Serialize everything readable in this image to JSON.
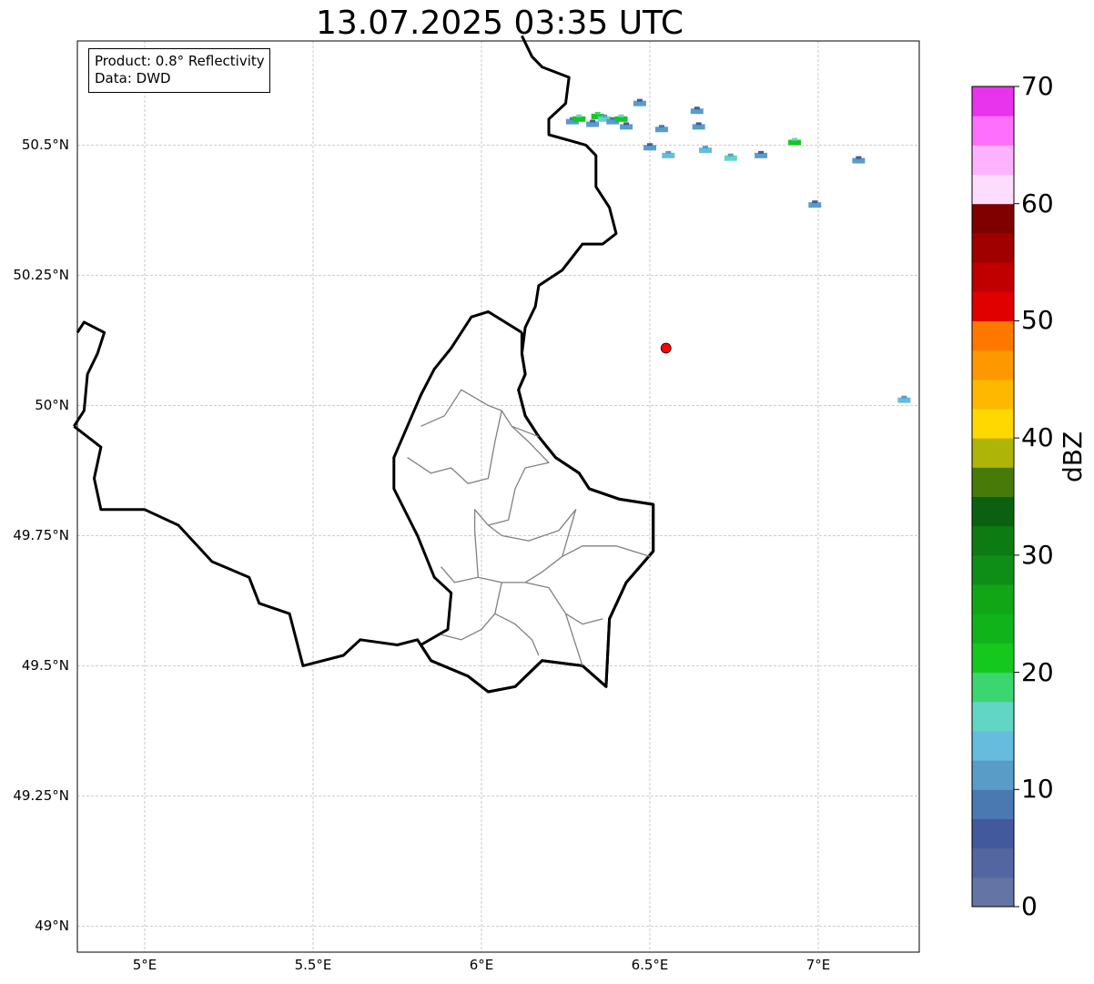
{
  "title": "13.07.2025 03:35 UTC",
  "info": {
    "product_line": "Product: 0.8° Reflectivity",
    "data_line": "Data: DWD"
  },
  "axes": {
    "lat_ticks": [
      {
        "value": 50.5,
        "label": "50.5°N"
      },
      {
        "value": 50.25,
        "label": "50.25°N"
      },
      {
        "value": 50.0,
        "label": "50°N"
      },
      {
        "value": 49.75,
        "label": "49.75°N"
      },
      {
        "value": 49.5,
        "label": "49.5°N"
      },
      {
        "value": 49.25,
        "label": "49.25°N"
      },
      {
        "value": 49.0,
        "label": "49°N"
      }
    ],
    "lon_ticks": [
      {
        "value": 5.0,
        "label": "5°E"
      },
      {
        "value": 5.5,
        "label": "5.5°E"
      },
      {
        "value": 6.0,
        "label": "6°E"
      },
      {
        "value": 6.5,
        "label": "6.5°E"
      },
      {
        "value": 7.0,
        "label": "7°E"
      }
    ],
    "extent": {
      "lon_min": 4.8,
      "lon_max": 7.3,
      "lat_min": 48.95,
      "lat_max": 50.7
    },
    "grid": true
  },
  "radar_site": {
    "lon": 6.548,
    "lat": 50.11,
    "color": "#ff0000"
  },
  "colorbar": {
    "label": "dBZ",
    "min": 0,
    "max": 70,
    "tick_labels": [
      "0",
      "10",
      "20",
      "30",
      "40",
      "50",
      "60",
      "70"
    ],
    "colors": [
      "#6474a4",
      "#5466a0",
      "#42599e",
      "#4a78b0",
      "#5a9cc8",
      "#66bcdc",
      "#62d6c4",
      "#3cd670",
      "#14c81e",
      "#10b41a",
      "#10a616",
      "#0e8e16",
      "#0c7c12",
      "#0a6210",
      "#487a0a",
      "#aeb408",
      "#fed800",
      "#feb800",
      "#fe9800",
      "#fe7800",
      "#e00000",
      "#c00000",
      "#a00000",
      "#800000",
      "#fedcfe",
      "#feb2fe",
      "#fe6ffe",
      "#e834ec"
    ]
  },
  "echo_cells": [
    {
      "lon": 6.27,
      "lat": 50.545,
      "dbz": 12
    },
    {
      "lon": 6.29,
      "lat": 50.55,
      "dbz": 20
    },
    {
      "lon": 6.33,
      "lat": 50.54,
      "dbz": 10
    },
    {
      "lon": 6.345,
      "lat": 50.555,
      "dbz": 22
    },
    {
      "lon": 6.365,
      "lat": 50.55,
      "dbz": 16
    },
    {
      "lon": 6.39,
      "lat": 50.545,
      "dbz": 12
    },
    {
      "lon": 6.415,
      "lat": 50.55,
      "dbz": 20
    },
    {
      "lon": 6.43,
      "lat": 50.535,
      "dbz": 10
    },
    {
      "lon": 6.47,
      "lat": 50.58,
      "dbz": 10
    },
    {
      "lon": 6.535,
      "lat": 50.53,
      "dbz": 12
    },
    {
      "lon": 6.5,
      "lat": 50.495,
      "dbz": 10
    },
    {
      "lon": 6.555,
      "lat": 50.48,
      "dbz": 14
    },
    {
      "lon": 6.64,
      "lat": 50.565,
      "dbz": 10
    },
    {
      "lon": 6.645,
      "lat": 50.535,
      "dbz": 10
    },
    {
      "lon": 6.665,
      "lat": 50.49,
      "dbz": 14
    },
    {
      "lon": 6.74,
      "lat": 50.475,
      "dbz": 16
    },
    {
      "lon": 6.83,
      "lat": 50.48,
      "dbz": 10
    },
    {
      "lon": 6.93,
      "lat": 50.505,
      "dbz": 20
    },
    {
      "lon": 6.99,
      "lat": 50.385,
      "dbz": 10
    },
    {
      "lon": 7.12,
      "lat": 50.47,
      "dbz": 10
    },
    {
      "lon": 7.255,
      "lat": 50.01,
      "dbz": 14
    }
  ],
  "boundaries": {
    "countries": [
      [
        [
          6.12,
          50.71
        ],
        [
          6.15,
          50.67
        ],
        [
          6.18,
          50.65
        ],
        [
          6.26,
          50.63
        ],
        [
          6.25,
          50.58
        ],
        [
          6.2,
          50.55
        ],
        [
          6.2,
          50.52
        ],
        [
          6.31,
          50.5
        ],
        [
          6.34,
          50.48
        ],
        [
          6.34,
          50.42
        ],
        [
          6.38,
          50.38
        ],
        [
          6.4,
          50.33
        ],
        [
          6.36,
          50.31
        ],
        [
          6.3,
          50.31
        ],
        [
          6.24,
          50.26
        ],
        [
          6.17,
          50.23
        ],
        [
          6.16,
          50.19
        ],
        [
          6.13,
          50.15
        ],
        [
          6.12,
          50.1
        ],
        [
          6.13,
          50.06
        ],
        [
          6.11,
          50.03
        ],
        [
          6.13,
          49.98
        ],
        [
          6.17,
          49.94
        ],
        [
          6.22,
          49.9
        ],
        [
          6.29,
          49.87
        ],
        [
          6.32,
          49.84
        ],
        [
          6.41,
          49.82
        ],
        [
          6.51,
          49.81
        ],
        [
          6.51,
          49.72
        ],
        [
          6.43,
          49.66
        ],
        [
          6.38,
          49.59
        ],
        [
          6.37,
          49.46
        ],
        [
          6.3,
          49.5
        ],
        [
          6.18,
          49.51
        ],
        [
          6.1,
          49.46
        ],
        [
          6.02,
          49.45
        ],
        [
          5.96,
          49.48
        ],
        [
          5.85,
          49.51
        ],
        [
          5.81,
          49.55
        ],
        [
          5.75,
          49.54
        ],
        [
          5.64,
          49.55
        ],
        [
          5.59,
          49.52
        ],
        [
          5.47,
          49.5
        ],
        [
          5.43,
          49.6
        ],
        [
          5.34,
          49.62
        ],
        [
          5.31,
          49.67
        ],
        [
          5.2,
          49.7
        ],
        [
          5.1,
          49.77
        ],
        [
          5.0,
          49.8
        ],
        [
          4.87,
          49.8
        ],
        [
          4.85,
          49.86
        ],
        [
          4.87,
          49.92
        ],
        [
          4.79,
          49.96
        ]
      ],
      [
        [
          4.8,
          50.14
        ],
        [
          4.82,
          50.16
        ],
        [
          4.88,
          50.14
        ],
        [
          4.86,
          50.1
        ],
        [
          4.83,
          50.06
        ],
        [
          4.82,
          49.99
        ],
        [
          4.79,
          49.96
        ]
      ]
    ],
    "luxembourg": [
      [
        6.12,
        50.14
      ],
      [
        6.02,
        50.18
      ],
      [
        5.97,
        50.17
      ],
      [
        5.91,
        50.11
      ],
      [
        5.86,
        50.07
      ],
      [
        5.82,
        50.02
      ],
      [
        5.78,
        49.96
      ],
      [
        5.74,
        49.9
      ],
      [
        5.74,
        49.84
      ],
      [
        5.81,
        49.75
      ],
      [
        5.86,
        49.67
      ],
      [
        5.91,
        49.64
      ],
      [
        5.9,
        49.57
      ],
      [
        5.82,
        49.54
      ],
      [
        5.85,
        49.51
      ],
      [
        5.96,
        49.48
      ],
      [
        6.02,
        49.45
      ],
      [
        6.1,
        49.46
      ],
      [
        6.18,
        49.51
      ],
      [
        6.3,
        49.5
      ],
      [
        6.37,
        49.46
      ],
      [
        6.38,
        49.59
      ],
      [
        6.43,
        49.66
      ],
      [
        6.51,
        49.72
      ],
      [
        6.51,
        49.81
      ],
      [
        6.41,
        49.82
      ],
      [
        6.32,
        49.84
      ],
      [
        6.29,
        49.87
      ],
      [
        6.22,
        49.9
      ],
      [
        6.17,
        49.94
      ],
      [
        6.13,
        49.98
      ],
      [
        6.11,
        50.03
      ],
      [
        6.13,
        50.06
      ],
      [
        6.12,
        50.1
      ],
      [
        6.12,
        50.14
      ]
    ],
    "cantons": [
      [
        [
          5.82,
          49.96
        ],
        [
          5.89,
          49.98
        ],
        [
          5.94,
          50.03
        ],
        [
          6.02,
          50.0
        ],
        [
          6.06,
          49.99
        ]
      ],
      [
        [
          6.06,
          49.99
        ],
        [
          6.04,
          49.93
        ],
        [
          6.02,
          49.86
        ],
        [
          5.96,
          49.85
        ],
        [
          5.91,
          49.88
        ],
        [
          5.85,
          49.87
        ],
        [
          5.78,
          49.9
        ]
      ],
      [
        [
          6.06,
          49.99
        ],
        [
          6.09,
          49.96
        ],
        [
          6.14,
          49.93
        ],
        [
          6.2,
          49.89
        ],
        [
          6.13,
          49.88
        ],
        [
          6.1,
          49.84
        ],
        [
          6.08,
          49.78
        ],
        [
          6.02,
          49.77
        ],
        [
          5.98,
          49.8
        ],
        [
          5.98,
          49.76
        ]
      ],
      [
        [
          6.17,
          49.94
        ],
        [
          6.09,
          49.96
        ]
      ],
      [
        [
          6.02,
          49.77
        ],
        [
          6.06,
          49.75
        ],
        [
          6.14,
          49.74
        ],
        [
          6.23,
          49.76
        ],
        [
          6.28,
          49.8
        ],
        [
          6.24,
          49.71
        ]
      ],
      [
        [
          5.98,
          49.76
        ],
        [
          5.99,
          49.67
        ],
        [
          5.92,
          49.66
        ],
        [
          5.88,
          49.69
        ]
      ],
      [
        [
          5.99,
          49.67
        ],
        [
          6.06,
          49.66
        ],
        [
          6.13,
          49.66
        ],
        [
          6.18,
          49.68
        ],
        [
          6.24,
          49.71
        ],
        [
          6.3,
          49.73
        ],
        [
          6.4,
          49.73
        ],
        [
          6.5,
          49.71
        ]
      ],
      [
        [
          6.13,
          49.66
        ],
        [
          6.2,
          49.65
        ],
        [
          6.25,
          49.6
        ],
        [
          6.3,
          49.58
        ],
        [
          6.36,
          49.59
        ]
      ],
      [
        [
          6.06,
          49.66
        ],
        [
          6.04,
          49.6
        ],
        [
          6.0,
          49.57
        ],
        [
          5.94,
          49.55
        ],
        [
          5.88,
          49.56
        ]
      ],
      [
        [
          6.04,
          49.6
        ],
        [
          6.1,
          49.58
        ],
        [
          6.15,
          49.55
        ],
        [
          6.17,
          49.52
        ]
      ],
      [
        [
          6.25,
          49.6
        ],
        [
          6.27,
          49.56
        ],
        [
          6.3,
          49.5
        ]
      ]
    ]
  }
}
